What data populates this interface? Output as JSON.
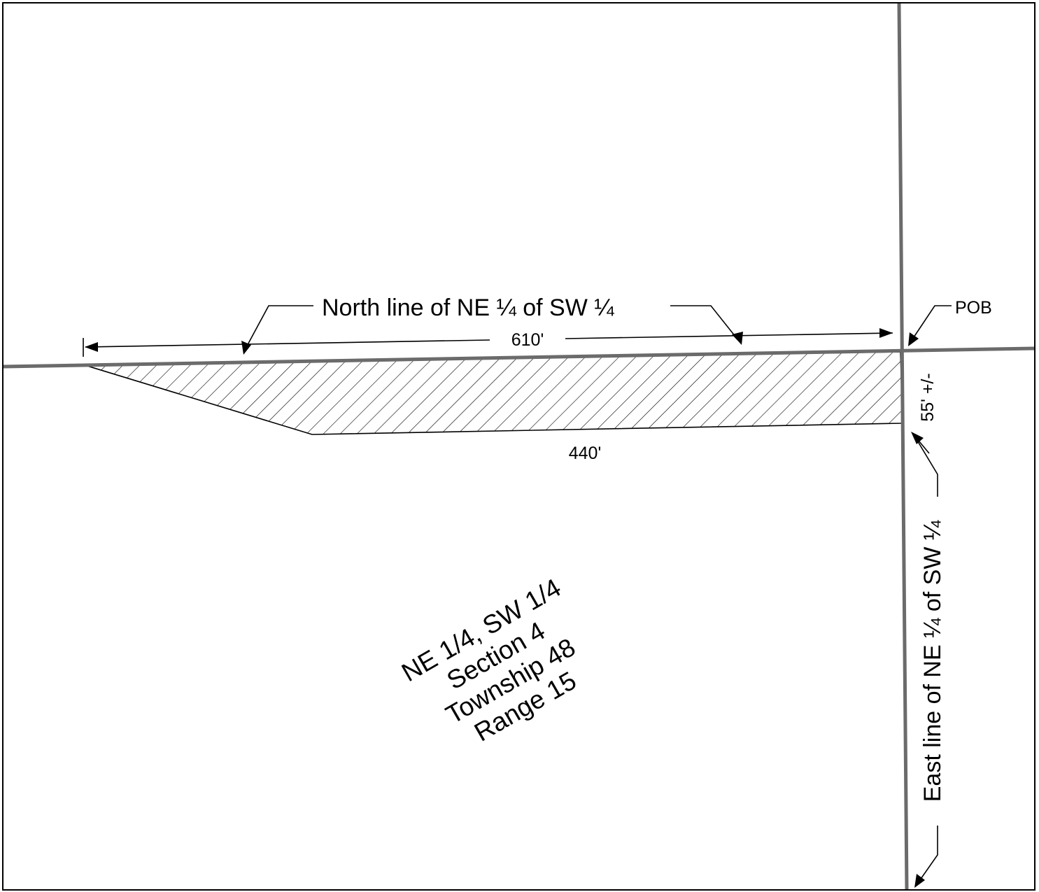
{
  "labels": {
    "north_line": "North line of  NE ¼ of  SW ¼",
    "east_line": "East line of  NE ¼ of  SW ¼",
    "pob": "POB",
    "dim_top": "610'",
    "dim_bottom": "440'",
    "dim_side": "55' +/-"
  },
  "legal_description": {
    "line1": "NE 1/4,  SW 1/4",
    "line2": "Section 4",
    "line3": "Township 48",
    "line4": "Range 15"
  },
  "colors": {
    "section_line": "#6b6b6b",
    "ink": "#000000",
    "background": "#ffffff"
  }
}
